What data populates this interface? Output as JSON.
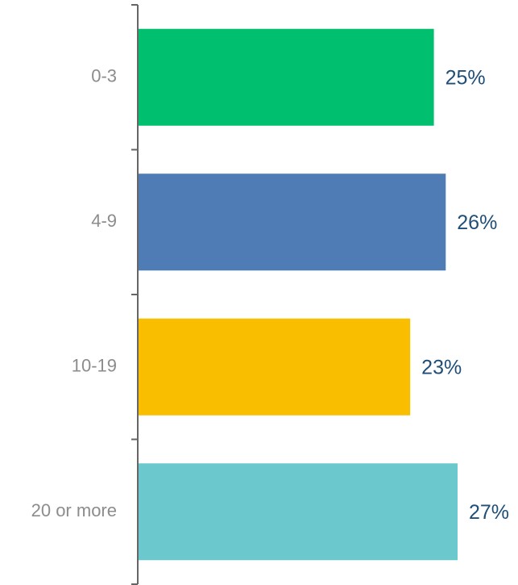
{
  "chart_data": {
    "type": "bar",
    "orientation": "horizontal",
    "categories": [
      "0-3",
      "4-9",
      "10-19",
      "20 or more"
    ],
    "values": [
      25,
      26,
      23,
      27
    ],
    "value_labels": [
      "25%",
      "26%",
      "23%",
      "27%"
    ],
    "unit": "%",
    "colors": [
      "#00bf6f",
      "#507cb6",
      "#f9be00",
      "#6bc8cd"
    ],
    "xlim": [
      0,
      27
    ],
    "grid": false,
    "legend": "none"
  },
  "colors": {
    "axis": "#666666",
    "category_text": "#8c8c8c",
    "value_text": "#1f4e79"
  }
}
